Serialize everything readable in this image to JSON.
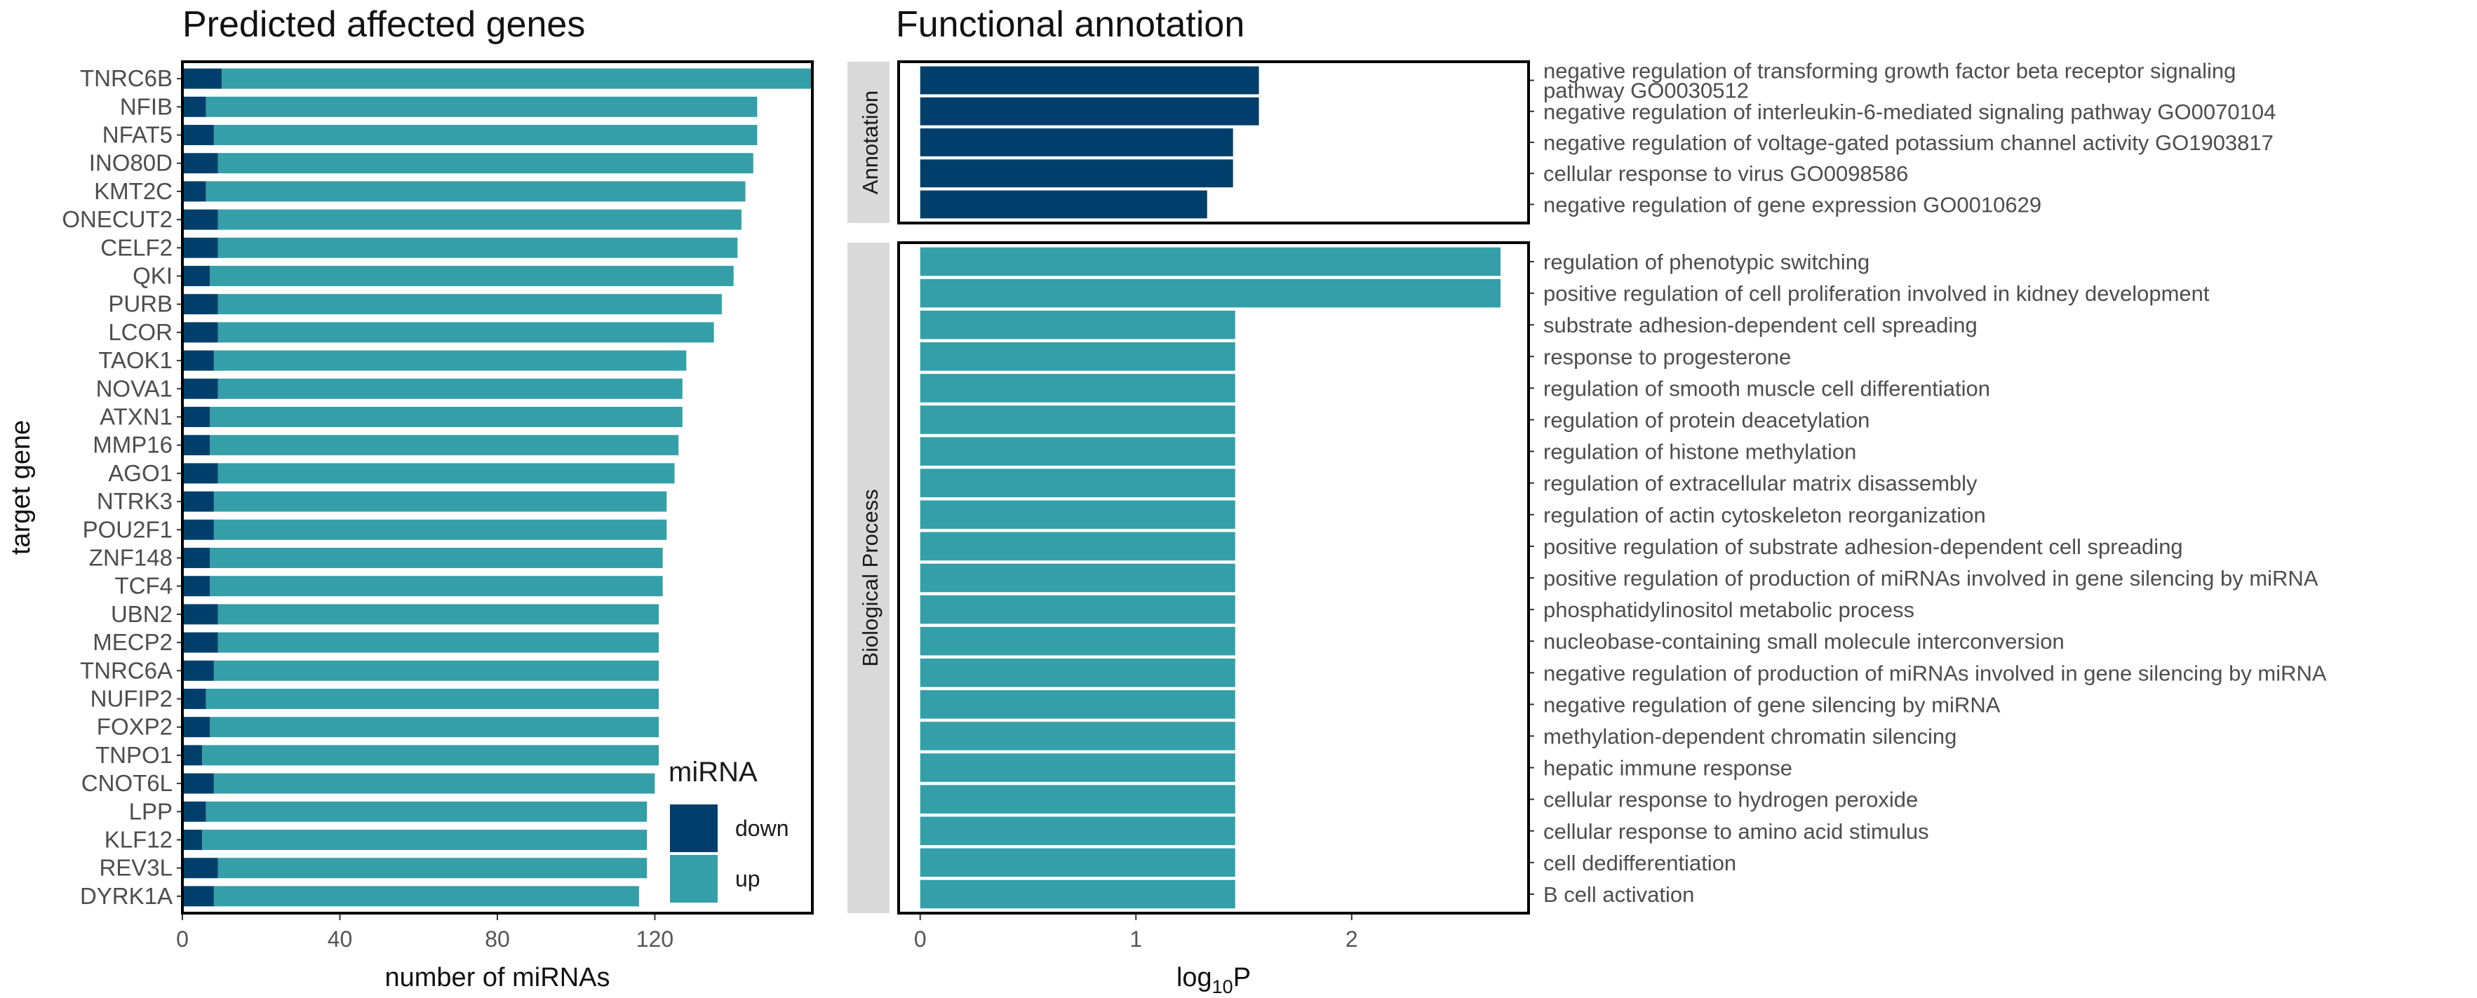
{
  "chart_data": [
    {
      "type": "bar",
      "orientation": "horizontal",
      "stacked": true,
      "title": "Predicted affected genes",
      "xlabel": "number of miRNAs",
      "ylabel": "target gene",
      "xlim": [
        0,
        160
      ],
      "xticks": [
        0,
        40,
        80,
        120
      ],
      "categories": [
        "TNRC6B",
        "NFIB",
        "NFAT5",
        "INO80D",
        "KMT2C",
        "ONECUT2",
        "CELF2",
        "QKI",
        "PURB",
        "LCOR",
        "TAOK1",
        "NOVA1",
        "ATXN1",
        "MMP16",
        "AGO1",
        "NTRK3",
        "POU2F1",
        "ZNF148",
        "TCF4",
        "UBN2",
        "MECP2",
        "TNRC6A",
        "NUFIP2",
        "FOXP2",
        "TNPO1",
        "CNOT6L",
        "LPP",
        "KLF12",
        "REV3L",
        "DYRK1A"
      ],
      "series": [
        {
          "name": "down",
          "color": "#003f6b",
          "values": [
            10,
            6,
            8,
            9,
            6,
            9,
            9,
            7,
            9,
            9,
            8,
            9,
            7,
            7,
            9,
            8,
            8,
            7,
            7,
            9,
            9,
            8,
            6,
            7,
            5,
            8,
            6,
            5,
            9,
            8
          ]
        },
        {
          "name": "up",
          "color": "#349fa8",
          "values": [
            150,
            140,
            138,
            136,
            137,
            133,
            132,
            133,
            128,
            126,
            120,
            118,
            120,
            119,
            116,
            115,
            115,
            115,
            115,
            112,
            112,
            113,
            115,
            114,
            116,
            112,
            112,
            113,
            109,
            108
          ]
        }
      ],
      "legend": {
        "title": "miRNA",
        "position": "bottom-right",
        "items": [
          "down",
          "up"
        ]
      }
    },
    {
      "type": "bar",
      "orientation": "horizontal",
      "title": "Functional annotation",
      "xlabel_main": "log",
      "xlabel_sub": "10",
      "xlabel_tail": "P",
      "xlim": [
        -0.1,
        2.82
      ],
      "xticks": [
        0,
        1,
        2
      ],
      "panels": [
        {
          "name": "Annotation",
          "color": "#003f6b",
          "categories": [
            [
              "negative regulation of transforming growth factor beta receptor signaling",
              "pathway GO0030512"
            ],
            [
              "negative regulation of interleukin-6-mediated signaling pathway GO0070104"
            ],
            [
              "negative regulation of voltage-gated potassium channel activity GO1903817"
            ],
            [
              "cellular response to virus GO0098586"
            ],
            [
              "negative regulation of gene expression GO0010629"
            ]
          ],
          "values": [
            1.57,
            1.57,
            1.45,
            1.45,
            1.33
          ]
        },
        {
          "name": "Biological Process",
          "color": "#349fa8",
          "categories": [
            [
              "regulation of phenotypic switching"
            ],
            [
              "positive regulation of cell proliferation involved in kidney development"
            ],
            [
              "substrate adhesion-dependent cell spreading"
            ],
            [
              "response to progesterone"
            ],
            [
              "regulation of smooth muscle cell differentiation"
            ],
            [
              "regulation of protein deacetylation"
            ],
            [
              "regulation of histone methylation"
            ],
            [
              "regulation of extracellular matrix disassembly"
            ],
            [
              "regulation of actin cytoskeleton reorganization"
            ],
            [
              "positive regulation of substrate adhesion-dependent cell spreading"
            ],
            [
              "positive regulation of production of miRNAs involved in gene silencing by miRNA"
            ],
            [
              "phosphatidylinositol metabolic process"
            ],
            [
              "nucleobase-containing small molecule interconversion"
            ],
            [
              "negative regulation of production of miRNAs involved in gene silencing by miRNA"
            ],
            [
              "negative regulation of gene silencing by miRNA"
            ],
            [
              "methylation-dependent chromatin silencing"
            ],
            [
              "hepatic immune response"
            ],
            [
              "cellular response to hydrogen peroxide"
            ],
            [
              "cellular response to amino acid stimulus"
            ],
            [
              "cell dedifferentiation"
            ],
            [
              "B cell activation"
            ]
          ],
          "values": [
            2.69,
            2.69,
            1.46,
            1.46,
            1.46,
            1.46,
            1.46,
            1.46,
            1.46,
            1.46,
            1.46,
            1.46,
            1.46,
            1.46,
            1.46,
            1.46,
            1.46,
            1.46,
            1.46,
            1.46,
            1.46
          ]
        }
      ]
    }
  ]
}
